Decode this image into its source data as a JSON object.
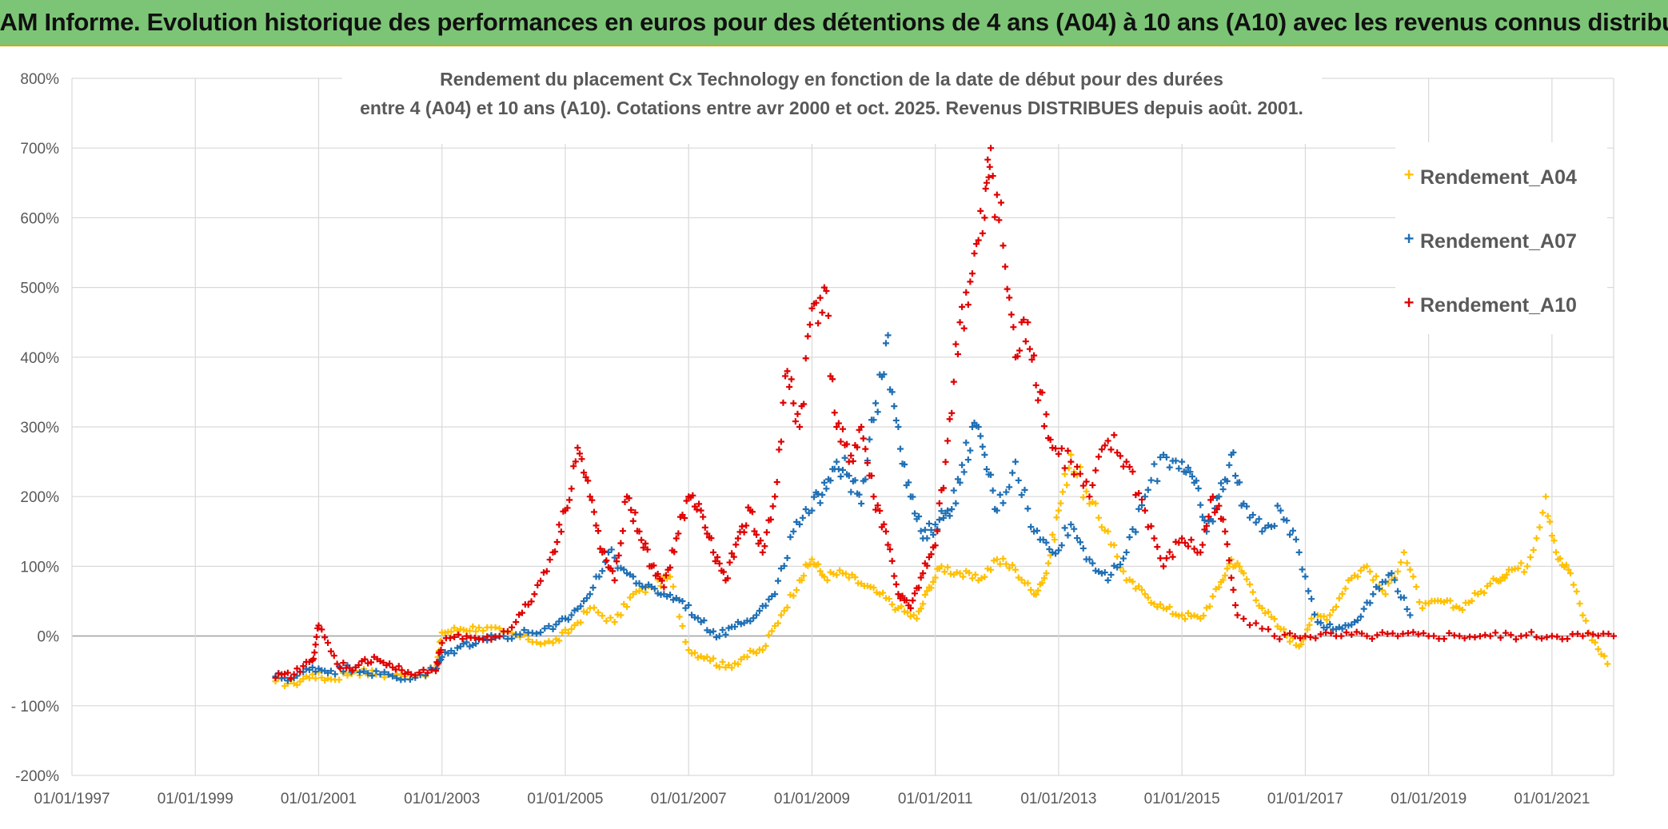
{
  "header": {
    "banner_title": "ADAM Informe. Evolution historique des performances en euros pour des détentions de 4 ans (A04) à 10 ans (A10) avec les revenus connus distribués"
  },
  "chart_data": {
    "type": "scatter",
    "title_line1": "Rendement du placement Cx Technology  en fonction de la date de début pour des durées",
    "title_line2": "entre 4 (A04) et 10 ans (A10). Cotations entre avr 2000 et oct. 2025. Revenus DISTRIBUES depuis août. 2001.",
    "x_range": [
      1997.0,
      2022.0
    ],
    "ylim": [
      -200,
      800
    ],
    "y_ticks": [
      -200,
      -100,
      0,
      100,
      200,
      300,
      400,
      500,
      600,
      700,
      800
    ],
    "y_tick_labels": [
      "-200%",
      "- 100%",
      "0%",
      "100%",
      "200%",
      "300%",
      "400%",
      "500%",
      "600%",
      "700%",
      "800%"
    ],
    "x_tick_values": [
      1997,
      1999,
      2001,
      2003,
      2005,
      2007,
      2009,
      2011,
      2013,
      2015,
      2017,
      2019,
      2021
    ],
    "x_tick_labels": [
      "01/01/1997",
      "01/01/1999",
      "01/01/2001",
      "01/01/2003",
      "01/01/2005",
      "01/01/2007",
      "01/01/2009",
      "01/01/2011",
      "01/01/2013",
      "01/01/2015",
      "01/01/2017",
      "01/01/2019",
      "01/01/2021"
    ],
    "grid": true,
    "legend_position": "top-right",
    "marker": "+",
    "series": [
      {
        "name": "Rendement_A04",
        "color": "#ffc000",
        "x": [
          2000.3,
          2000.6,
          2000.9,
          2001.2,
          2001.6,
          2002.0,
          2002.4,
          2002.9,
          2003.0,
          2003.3,
          2003.6,
          2004.0,
          2004.4,
          2004.8,
          2005.1,
          2005.4,
          2005.8,
          2006.1,
          2006.4,
          2006.7,
          2007.0,
          2007.3,
          2007.6,
          2007.9,
          2008.2,
          2008.5,
          2008.8,
          2009.0,
          2009.2,
          2009.5,
          2009.8,
          2010.1,
          2010.4,
          2010.7,
          2010.9,
          2011.1,
          2011.4,
          2011.7,
          2012.0,
          2012.3,
          2012.6,
          2012.8,
          2013.0,
          2013.2,
          2013.5,
          2013.8,
          2014.1,
          2014.4,
          2014.7,
          2015.0,
          2015.3,
          2015.6,
          2015.8,
          2016.0,
          2016.3,
          2016.6,
          2016.9,
          2017.1,
          2017.4,
          2017.7,
          2018.0,
          2018.3,
          2018.6,
          2018.9,
          2019.2,
          2019.5,
          2019.8,
          2020.1,
          2020.3,
          2020.6,
          2020.9,
          2021.1,
          2021.3,
          2021.6,
          2021.9
        ],
        "values": [
          -65,
          -68,
          -55,
          -62,
          -50,
          -55,
          -58,
          -50,
          5,
          10,
          12,
          5,
          -5,
          -10,
          10,
          40,
          20,
          60,
          70,
          85,
          -20,
          -30,
          -45,
          -30,
          -20,
          30,
          80,
          110,
          85,
          90,
          75,
          60,
          40,
          25,
          70,
          100,
          90,
          80,
          110,
          95,
          60,
          90,
          180,
          260,
          190,
          150,
          80,
          60,
          40,
          30,
          25,
          70,
          110,
          90,
          40,
          10,
          -15,
          25,
          30,
          80,
          100,
          60,
          120,
          40,
          50,
          40,
          60,
          80,
          95,
          100,
          200,
          110,
          90,
          5,
          -40
        ]
      },
      {
        "name": "Rendement_A07",
        "color": "#1f6fb4",
        "x": [
          2000.3,
          2000.6,
          2000.9,
          2001.2,
          2001.6,
          2002.0,
          2002.4,
          2002.9,
          2003.0,
          2003.3,
          2003.6,
          2004.0,
          2004.4,
          2004.8,
          2005.1,
          2005.4,
          2005.7,
          2006.0,
          2006.3,
          2006.6,
          2006.9,
          2007.2,
          2007.5,
          2007.8,
          2008.1,
          2008.4,
          2008.7,
          2009.0,
          2009.2,
          2009.4,
          2009.6,
          2009.8,
          2010.0,
          2010.2,
          2010.4,
          2010.6,
          2010.8,
          2011.0,
          2011.2,
          2011.4,
          2011.6,
          2011.8,
          2012.0,
          2012.3,
          2012.6,
          2012.9,
          2013.2,
          2013.5,
          2013.8,
          2014.1,
          2014.4,
          2014.7,
          2015.0,
          2015.2,
          2015.4,
          2015.6,
          2015.8,
          2016.0,
          2016.3,
          2016.6,
          2016.9,
          2017.2,
          2017.5,
          2017.8,
          2018.1,
          2018.4,
          2018.7
        ],
        "values": [
          -58,
          -60,
          -45,
          -50,
          -45,
          -55,
          -62,
          -48,
          -30,
          -15,
          -5,
          0,
          5,
          10,
          30,
          60,
          120,
          90,
          70,
          60,
          50,
          20,
          0,
          20,
          30,
          60,
          150,
          180,
          220,
          250,
          230,
          190,
          310,
          420,
          300,
          200,
          140,
          160,
          180,
          220,
          300,
          260,
          180,
          250,
          150,
          120,
          160,
          110,
          80,
          120,
          200,
          260,
          250,
          220,
          150,
          200,
          260,
          190,
          150,
          180,
          120,
          20,
          10,
          20,
          60,
          90,
          30
        ]
      },
      {
        "name": "Rendement_A10",
        "color": "#e00000",
        "x": [
          2000.3,
          2000.6,
          2000.9,
          2001.0,
          2001.3,
          2001.6,
          2001.9,
          2002.2,
          2002.5,
          2002.9,
          2003.0,
          2003.4,
          2003.8,
          2004.2,
          2004.5,
          2004.8,
          2005.0,
          2005.2,
          2005.4,
          2005.6,
          2005.8,
          2006.0,
          2006.2,
          2006.4,
          2006.6,
          2006.8,
          2007.0,
          2007.2,
          2007.4,
          2007.6,
          2007.8,
          2008.0,
          2008.2,
          2008.4,
          2008.6,
          2008.8,
          2009.0,
          2009.2,
          2009.4,
          2009.6,
          2009.8,
          2010.0,
          2010.2,
          2010.4,
          2010.6,
          2010.8,
          2011.0,
          2011.2,
          2011.4,
          2011.6,
          2011.8,
          2011.9,
          2012.1,
          2012.3,
          2012.5,
          2012.7,
          2012.9,
          2013.2,
          2013.5,
          2013.8,
          2014.1,
          2014.4,
          2014.7,
          2015.0,
          2015.3,
          2015.5,
          2015.7,
          2015.9,
          2016.5,
          2017.0,
          2017.5,
          2018.0,
          2018.5,
          2019.0,
          2019.5,
          2020.0,
          2020.5,
          2021.0,
          2021.5,
          2022.0
        ],
        "values": [
          -60,
          -55,
          -35,
          15,
          -40,
          -45,
          -30,
          -45,
          -55,
          -50,
          -10,
          0,
          -5,
          20,
          60,
          120,
          180,
          270,
          200,
          120,
          80,
          200,
          150,
          100,
          70,
          140,
          200,
          180,
          120,
          80,
          140,
          180,
          120,
          200,
          380,
          300,
          470,
          500,
          300,
          250,
          300,
          200,
          150,
          60,
          40,
          90,
          130,
          280,
          450,
          520,
          600,
          700,
          560,
          400,
          450,
          350,
          270,
          250,
          200,
          280,
          250,
          180,
          100,
          140,
          120,
          200,
          150,
          30,
          0,
          0,
          0,
          0,
          0,
          0,
          0,
          0,
          0,
          0,
          0,
          0
        ]
      }
    ]
  }
}
